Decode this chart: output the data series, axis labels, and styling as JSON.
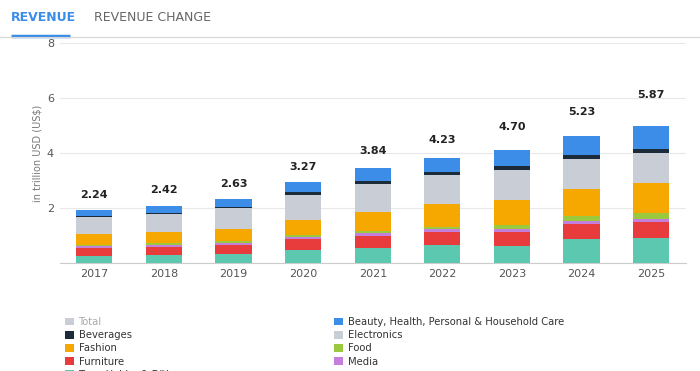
{
  "years": [
    2017,
    2018,
    2019,
    2020,
    2021,
    2022,
    2023,
    2024,
    2025
  ],
  "totals": [
    2.24,
    2.42,
    2.63,
    3.27,
    3.84,
    4.23,
    4.7,
    5.23,
    5.87
  ],
  "segments": {
    "Toys, Hobby & DIY": [
      0.27,
      0.29,
      0.33,
      0.47,
      0.57,
      0.68,
      0.62,
      0.88,
      0.93
    ],
    "Furniture": [
      0.3,
      0.32,
      0.35,
      0.4,
      0.44,
      0.47,
      0.52,
      0.55,
      0.58
    ],
    "Media": [
      0.05,
      0.05,
      0.05,
      0.09,
      0.09,
      0.08,
      0.09,
      0.1,
      0.1
    ],
    "Food": [
      0.06,
      0.07,
      0.08,
      0.07,
      0.09,
      0.09,
      0.17,
      0.2,
      0.23
    ],
    "Fashion": [
      0.37,
      0.4,
      0.45,
      0.53,
      0.68,
      0.82,
      0.9,
      0.97,
      1.07
    ],
    "Electronics": [
      0.63,
      0.66,
      0.73,
      0.93,
      1.0,
      1.07,
      1.1,
      1.1,
      1.1
    ],
    "Beverages": [
      0.04,
      0.05,
      0.06,
      0.08,
      0.1,
      0.11,
      0.13,
      0.14,
      0.15
    ],
    "Beauty, Health, Personal & Household Care": [
      0.22,
      0.23,
      0.28,
      0.38,
      0.47,
      0.51,
      0.57,
      0.69,
      0.81
    ]
  },
  "colors": {
    "Toys, Hobby & DIY": "#5bc8af",
    "Furniture": "#e83b3b",
    "Media": "#c47fdd",
    "Food": "#9bc93d",
    "Fashion": "#f7a800",
    "Electronics": "#c8cdd6",
    "Beverages": "#1c2b3a",
    "Beauty, Health, Personal & Household Care": "#3b8de8"
  },
  "ylabel": "in trillion USD (US$)",
  "ylim": [
    0,
    8
  ],
  "yticks": [
    0,
    2,
    4,
    6,
    8
  ],
  "bg_color": "#ffffff",
  "grid_color": "#e8e8e8",
  "tab_revenue": "REVENUE",
  "tab_revenue_change": "REVENUE CHANGE",
  "tab_active_color": "#3b8de8",
  "tab_inactive_color": "#666666",
  "total_label_fontsize": 8.0
}
